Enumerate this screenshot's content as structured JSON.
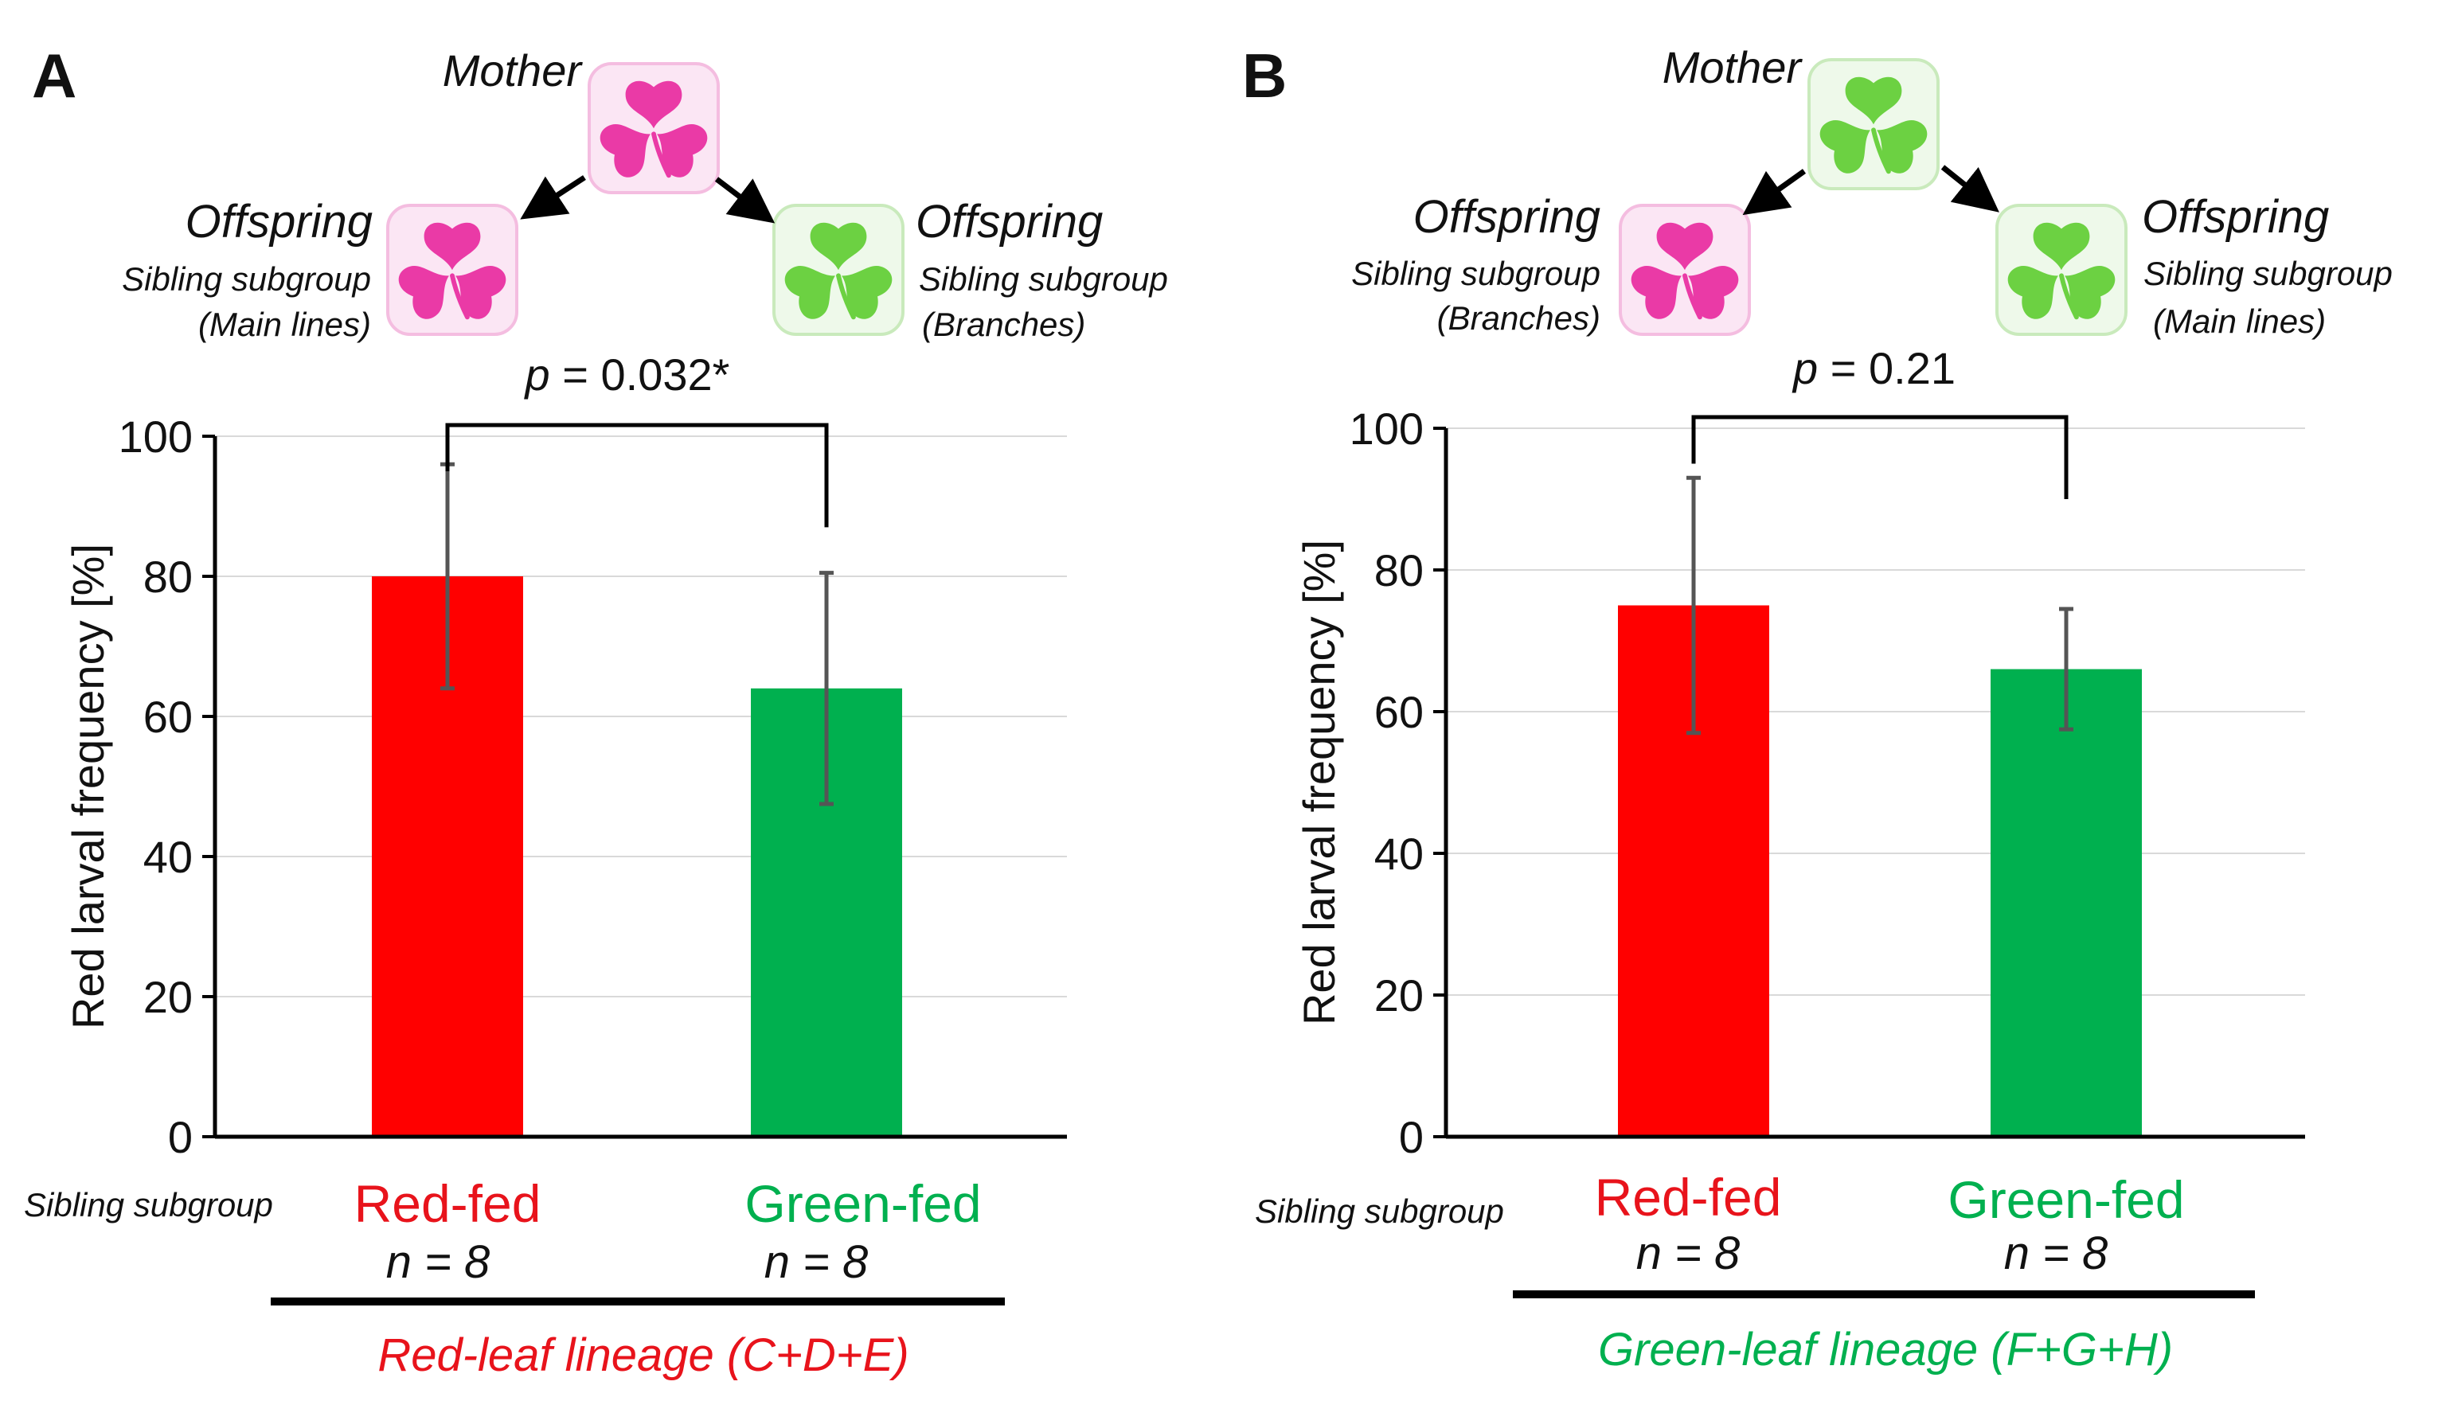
{
  "panels": [
    {
      "id": "A",
      "mother_label": "Mother",
      "left": {
        "title": "Offspring",
        "line1": "Sibling subgroup",
        "line2": "(Main lines)"
      },
      "right": {
        "title": "Offspring",
        "line1": "Sibling subgroup",
        "line2": "(Branches)"
      },
      "mother_leaf": "red",
      "left_leaf": "red",
      "right_leaf": "green",
      "p_prefix": "p",
      "p_text": " = 0.032*",
      "sibling_label": "Sibling subgroup",
      "lineage_label": "Red-leaf lineage (C+D+E)",
      "lineage_color": "#e8131b",
      "chart_data": {
        "type": "bar",
        "title": "",
        "xlabel": "",
        "ylabel": "Red larval frequency [%]",
        "ylim": [
          0,
          100
        ],
        "yticks": [
          0,
          20,
          40,
          60,
          80,
          100
        ],
        "grid": true,
        "categories": [
          "Red-fed",
          "Green-fed"
        ],
        "values": [
          80,
          64
        ],
        "errors": [
          16,
          16.5
        ],
        "colors": [
          "#ff0000",
          "#00b04f"
        ],
        "n_labels": [
          "n = 8",
          "n = 8"
        ],
        "bracket_ends": [
          95,
          87
        ]
      }
    },
    {
      "id": "B",
      "mother_label": "Mother",
      "left": {
        "title": "Offspring",
        "line1": "Sibling subgroup",
        "line2": "(Branches)"
      },
      "right": {
        "title": "Offspring",
        "line1": "Sibling subgroup",
        "line2": "(Main lines)"
      },
      "mother_leaf": "green",
      "left_leaf": "red",
      "right_leaf": "green",
      "p_prefix": "p",
      "p_text": " = 0.21",
      "sibling_label": "Sibling subgroup",
      "lineage_label": "Green-leaf lineage (F+G+H)",
      "lineage_color": "#00b04f",
      "chart_data": {
        "type": "bar",
        "title": "",
        "xlabel": "",
        "ylabel": "Red larval frequency [%]",
        "ylim": [
          0,
          100
        ],
        "yticks": [
          0,
          20,
          40,
          60,
          80,
          100
        ],
        "grid": true,
        "categories": [
          "Red-fed",
          "Green-fed"
        ],
        "values": [
          75,
          66
        ],
        "errors": [
          18,
          8.5
        ],
        "colors": [
          "#ff0000",
          "#00b04f"
        ],
        "n_labels": [
          "n = 8",
          "n = 8"
        ],
        "bracket_ends": [
          95,
          90
        ]
      }
    }
  ],
  "colors": {
    "red_leaf": "#ea3aa6",
    "red_leaf_bg": "#fbe6f4",
    "red_leaf_border": "#f4bde0",
    "green_leaf": "#6cd142",
    "green_leaf_bg": "#eef9ea",
    "green_leaf_border": "#c9eabc",
    "red_text": "#e8131b",
    "green_text": "#00b04f"
  }
}
